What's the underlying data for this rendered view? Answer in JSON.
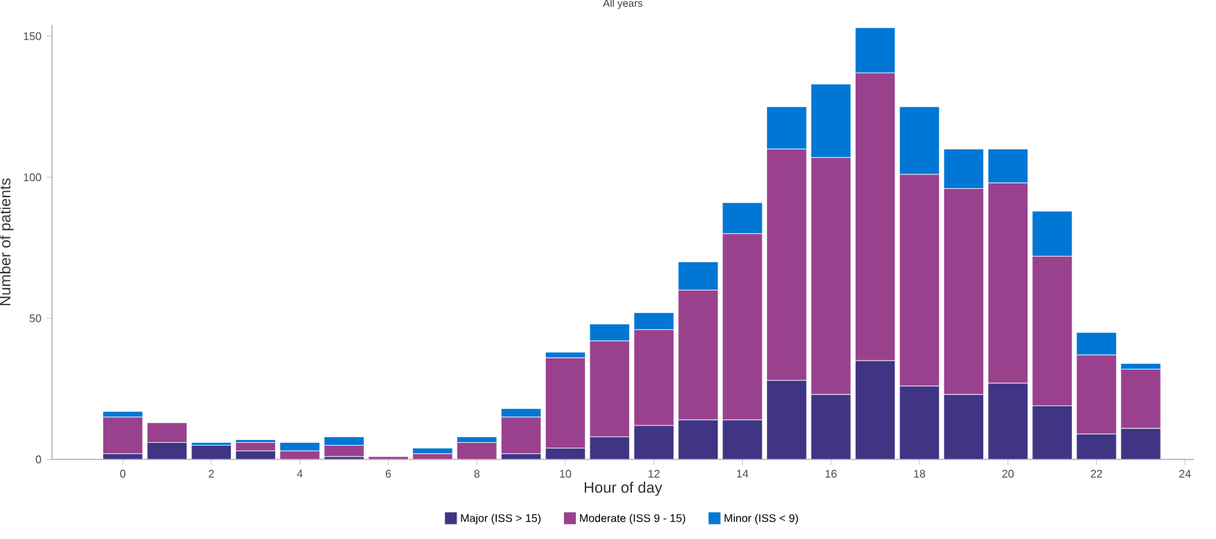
{
  "chart_data": {
    "type": "bar",
    "title": "All years",
    "xlabel": "Hour of day",
    "ylabel": "Number of patients",
    "x": [
      0,
      1,
      2,
      3,
      4,
      5,
      6,
      7,
      8,
      9,
      10,
      11,
      12,
      13,
      14,
      15,
      16,
      17,
      18,
      19,
      20,
      21,
      22,
      23
    ],
    "series": [
      {
        "name": "Major (ISS > 15)",
        "color": "#3f3584",
        "values": [
          2,
          6,
          5,
          3,
          0,
          1,
          0,
          0,
          0,
          2,
          4,
          8,
          12,
          14,
          14,
          28,
          23,
          35,
          26,
          23,
          27,
          19,
          9,
          11
        ]
      },
      {
        "name": "Moderate (ISS 9 - 15)",
        "color": "#9a418e",
        "values": [
          13,
          7,
          0,
          3,
          3,
          4,
          1,
          2,
          6,
          13,
          32,
          34,
          34,
          46,
          66,
          82,
          84,
          102,
          75,
          73,
          71,
          53,
          28,
          21
        ]
      },
      {
        "name": "Minor (ISS < 9)",
        "color": "#0077d4",
        "values": [
          2,
          0,
          1,
          1,
          3,
          3,
          0,
          2,
          2,
          3,
          2,
          6,
          6,
          10,
          11,
          15,
          26,
          16,
          24,
          14,
          12,
          16,
          8,
          2
        ]
      }
    ],
    "stacked": true,
    "xlim": [
      -1.6,
      24.2
    ],
    "ylim": [
      0,
      154
    ],
    "xticks": [
      0,
      2,
      4,
      6,
      8,
      10,
      12,
      14,
      16,
      18,
      20,
      22,
      24
    ],
    "yticks": [
      0,
      50,
      100,
      150
    ],
    "legend": "bottom"
  }
}
